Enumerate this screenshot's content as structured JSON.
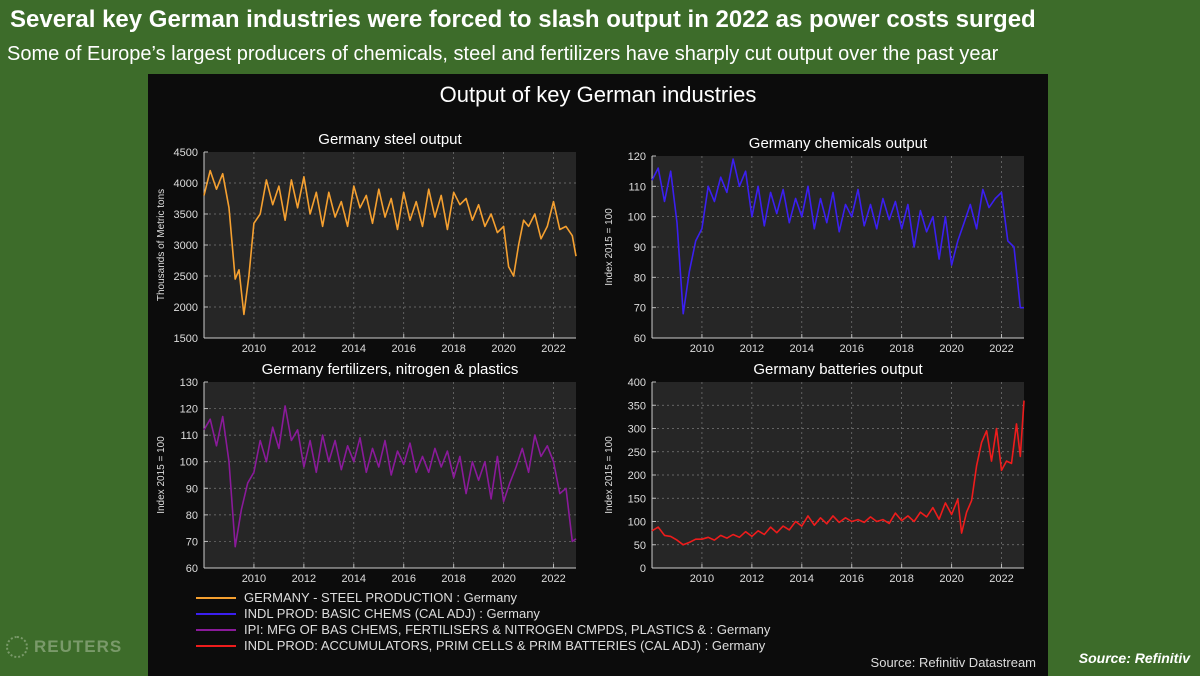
{
  "headline": "Several key German industries were forced to slash output in 2022 as power costs surged",
  "subheadline": "Some of Europe’s largest producers of chemicals, steel and fertilizers have sharply cut output over the past year",
  "panel_title": "Output of key German industries",
  "source_chart": "Source: Refinitiv Datastream",
  "source_note": "Source: Refinitiv",
  "brand": "REUTERS",
  "legend": [
    {
      "label": "GERMANY - STEEL PRODUCTION : Germany",
      "color": "#f5a030"
    },
    {
      "label": "INDL PROD: BASIC CHEMS (CAL ADJ) : Germany",
      "color": "#3b1ff0"
    },
    {
      "label": "IPI: MFG OF BAS CHEMS, FERTILISERS & NITROGEN CMPDS, PLASTICS & : Germany",
      "color": "#8a1a9a"
    },
    {
      "label": "INDL PROD: ACCUMULATORS, PRIM CELLS & PRIM BATTERIES (CAL ADJ) : Germany",
      "color": "#ee1c1c"
    }
  ],
  "chart_data": [
    {
      "type": "line",
      "title": "Germany steel output",
      "ylabel": "Thousands of Metric tons",
      "color": "#f5a030",
      "xlim": [
        2008,
        2022.9
      ],
      "ylim": [
        1500,
        4500
      ],
      "yticks": [
        1500,
        2000,
        2500,
        3000,
        3500,
        4000,
        4500
      ],
      "xticks": [
        2010,
        2012,
        2014,
        2016,
        2018,
        2020,
        2022
      ],
      "x": [
        2008.0,
        2008.25,
        2008.5,
        2008.75,
        2009.0,
        2009.25,
        2009.4,
        2009.6,
        2009.8,
        2010.0,
        2010.25,
        2010.5,
        2010.75,
        2011.0,
        2011.25,
        2011.5,
        2011.75,
        2012.0,
        2012.25,
        2012.5,
        2012.75,
        2013.0,
        2013.25,
        2013.5,
        2013.75,
        2014.0,
        2014.25,
        2014.5,
        2014.75,
        2015.0,
        2015.25,
        2015.5,
        2015.75,
        2016.0,
        2016.25,
        2016.5,
        2016.75,
        2017.0,
        2017.25,
        2017.5,
        2017.75,
        2018.0,
        2018.25,
        2018.5,
        2018.75,
        2019.0,
        2019.25,
        2019.5,
        2019.75,
        2020.0,
        2020.2,
        2020.4,
        2020.6,
        2020.8,
        2021.0,
        2021.25,
        2021.5,
        2021.75,
        2022.0,
        2022.25,
        2022.5,
        2022.75,
        2022.9
      ],
      "y": [
        3800,
        4200,
        3900,
        4150,
        3600,
        2450,
        2600,
        1880,
        2500,
        3350,
        3500,
        4050,
        3650,
        3950,
        3400,
        4050,
        3600,
        4100,
        3500,
        3850,
        3300,
        3850,
        3450,
        3700,
        3300,
        3950,
        3600,
        3800,
        3350,
        3900,
        3450,
        3750,
        3250,
        3850,
        3400,
        3700,
        3300,
        3900,
        3450,
        3800,
        3250,
        3850,
        3650,
        3750,
        3400,
        3650,
        3300,
        3500,
        3200,
        3300,
        2650,
        2500,
        3000,
        3400,
        3300,
        3500,
        3100,
        3300,
        3700,
        3250,
        3300,
        3150,
        2820
      ]
    },
    {
      "type": "line",
      "title": "Germany chemicals output",
      "ylabel": "Index 2015 = 100",
      "color": "#3b1ff0",
      "xlim": [
        2008,
        2022.9
      ],
      "ylim": [
        60,
        120
      ],
      "yticks": [
        60,
        70,
        80,
        90,
        100,
        110,
        120
      ],
      "xticks": [
        2010,
        2012,
        2014,
        2016,
        2018,
        2020,
        2022
      ],
      "x": [
        2008.0,
        2008.25,
        2008.5,
        2008.75,
        2009.0,
        2009.25,
        2009.5,
        2009.75,
        2010.0,
        2010.25,
        2010.5,
        2010.75,
        2011.0,
        2011.25,
        2011.5,
        2011.75,
        2012.0,
        2012.25,
        2012.5,
        2012.75,
        2013.0,
        2013.25,
        2013.5,
        2013.75,
        2014.0,
        2014.25,
        2014.5,
        2014.75,
        2015.0,
        2015.25,
        2015.5,
        2015.75,
        2016.0,
        2016.25,
        2016.5,
        2016.75,
        2017.0,
        2017.25,
        2017.5,
        2017.75,
        2018.0,
        2018.25,
        2018.5,
        2018.75,
        2019.0,
        2019.25,
        2019.5,
        2019.75,
        2020.0,
        2020.25,
        2020.5,
        2020.75,
        2021.0,
        2021.25,
        2021.5,
        2021.75,
        2022.0,
        2022.25,
        2022.5,
        2022.75,
        2022.9
      ],
      "y": [
        112,
        116,
        105,
        115,
        98,
        68,
        82,
        92,
        96,
        110,
        105,
        113,
        108,
        119,
        110,
        115,
        100,
        110,
        97,
        108,
        101,
        109,
        98,
        106,
        100,
        110,
        96,
        106,
        98,
        108,
        95,
        104,
        100,
        109,
        97,
        104,
        96,
        106,
        99,
        105,
        96,
        104,
        90,
        102,
        95,
        100,
        86,
        100,
        84,
        92,
        98,
        104,
        96,
        109,
        103,
        106,
        108,
        92,
        90,
        70,
        70
      ]
    },
    {
      "type": "line",
      "title": "Germany fertilizers, nitrogen & plastics",
      "ylabel": "Index 2015 = 100",
      "color": "#8a1a9a",
      "xlim": [
        2008,
        2022.9
      ],
      "ylim": [
        60,
        130
      ],
      "yticks": [
        60,
        70,
        80,
        90,
        100,
        110,
        120,
        130
      ],
      "xticks": [
        2010,
        2012,
        2014,
        2016,
        2018,
        2020,
        2022
      ],
      "x": [
        2008.0,
        2008.25,
        2008.5,
        2008.75,
        2009.0,
        2009.25,
        2009.5,
        2009.75,
        2010.0,
        2010.25,
        2010.5,
        2010.75,
        2011.0,
        2011.25,
        2011.5,
        2011.75,
        2012.0,
        2012.25,
        2012.5,
        2012.75,
        2013.0,
        2013.25,
        2013.5,
        2013.75,
        2014.0,
        2014.25,
        2014.5,
        2014.75,
        2015.0,
        2015.25,
        2015.5,
        2015.75,
        2016.0,
        2016.25,
        2016.5,
        2016.75,
        2017.0,
        2017.25,
        2017.5,
        2017.75,
        2018.0,
        2018.25,
        2018.5,
        2018.75,
        2019.0,
        2019.25,
        2019.5,
        2019.75,
        2020.0,
        2020.25,
        2020.5,
        2020.75,
        2021.0,
        2021.25,
        2021.5,
        2021.75,
        2022.0,
        2022.25,
        2022.5,
        2022.75,
        2022.9
      ],
      "y": [
        112,
        116,
        106,
        117,
        100,
        68,
        82,
        92,
        96,
        108,
        100,
        113,
        105,
        121,
        108,
        112,
        98,
        108,
        96,
        110,
        100,
        108,
        97,
        106,
        100,
        109,
        96,
        105,
        98,
        108,
        95,
        104,
        99,
        107,
        96,
        102,
        96,
        105,
        98,
        104,
        94,
        102,
        88,
        100,
        93,
        100,
        86,
        102,
        85,
        92,
        98,
        105,
        96,
        110,
        102,
        106,
        100,
        88,
        90,
        70,
        71
      ]
    },
    {
      "type": "line",
      "title": "Germany batteries output",
      "ylabel": "Index 2015 = 100",
      "color": "#ee1c1c",
      "xlim": [
        2008,
        2022.9
      ],
      "ylim": [
        0,
        400
      ],
      "yticks": [
        0,
        50,
        100,
        150,
        200,
        250,
        300,
        350,
        400
      ],
      "xticks": [
        2010,
        2012,
        2014,
        2016,
        2018,
        2020,
        2022
      ],
      "x": [
        2008.0,
        2008.25,
        2008.5,
        2008.75,
        2009.0,
        2009.25,
        2009.5,
        2009.75,
        2010.0,
        2010.25,
        2010.5,
        2010.75,
        2011.0,
        2011.25,
        2011.5,
        2011.75,
        2012.0,
        2012.25,
        2012.5,
        2012.75,
        2013.0,
        2013.25,
        2013.5,
        2013.75,
        2014.0,
        2014.25,
        2014.5,
        2014.75,
        2015.0,
        2015.25,
        2015.5,
        2015.75,
        2016.0,
        2016.25,
        2016.5,
        2016.75,
        2017.0,
        2017.25,
        2017.5,
        2017.75,
        2018.0,
        2018.25,
        2018.5,
        2018.75,
        2019.0,
        2019.25,
        2019.5,
        2019.75,
        2020.0,
        2020.25,
        2020.4,
        2020.6,
        2020.8,
        2021.0,
        2021.2,
        2021.4,
        2021.6,
        2021.8,
        2022.0,
        2022.2,
        2022.4,
        2022.6,
        2022.75,
        2022.9
      ],
      "y": [
        80,
        88,
        70,
        68,
        60,
        50,
        55,
        62,
        62,
        66,
        60,
        70,
        64,
        72,
        66,
        78,
        68,
        80,
        72,
        88,
        76,
        90,
        82,
        100,
        90,
        112,
        92,
        108,
        95,
        112,
        98,
        108,
        100,
        104,
        98,
        110,
        100,
        104,
        96,
        118,
        102,
        112,
        100,
        120,
        110,
        130,
        105,
        140,
        115,
        148,
        75,
        120,
        145,
        220,
        270,
        295,
        230,
        300,
        210,
        230,
        225,
        310,
        240,
        360
      ]
    }
  ]
}
